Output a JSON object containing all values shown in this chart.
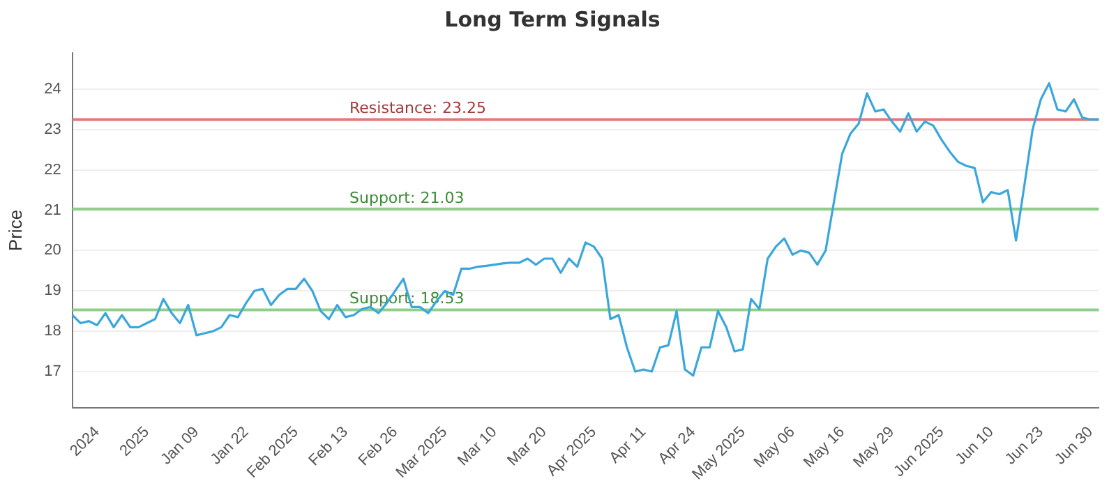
{
  "chart_data": {
    "type": "line",
    "title": "Long Term Signals",
    "ylabel": "Price",
    "categories": [
      null,
      null,
      null,
      "2024",
      null,
      null,
      null,
      null,
      null,
      "2025",
      null,
      null,
      null,
      null,
      null,
      "Jan 09",
      null,
      null,
      null,
      null,
      null,
      "Jan 22",
      null,
      null,
      null,
      null,
      null,
      "Feb 2025",
      null,
      null,
      null,
      null,
      null,
      "Feb 13",
      null,
      null,
      null,
      null,
      null,
      "Feb 26",
      null,
      null,
      null,
      null,
      null,
      "Mar 2025",
      null,
      null,
      null,
      null,
      null,
      "Mar 10",
      null,
      null,
      null,
      null,
      null,
      "Mar 20",
      null,
      null,
      null,
      null,
      null,
      "Apr 2025",
      null,
      null,
      null,
      null,
      null,
      "Apr 11",
      null,
      null,
      null,
      null,
      null,
      "Apr 24",
      null,
      null,
      null,
      null,
      null,
      "May 2025",
      null,
      null,
      null,
      null,
      null,
      "May 06",
      null,
      null,
      null,
      null,
      null,
      "May 16",
      null,
      null,
      null,
      null,
      null,
      "May 29",
      null,
      null,
      null,
      null,
      null,
      "Jun 2025",
      null,
      null,
      null,
      null,
      null,
      "Jun 10",
      null,
      null,
      null,
      null,
      null,
      "Jun 23",
      null,
      null,
      null,
      null,
      null,
      "Jun 30",
      null
    ],
    "series": [
      {
        "color": "#3aa7dc",
        "values": [
          18.4,
          18.2,
          18.25,
          18.15,
          18.45,
          18.1,
          18.4,
          18.1,
          18.1,
          18.2,
          18.3,
          18.8,
          18.45,
          18.2,
          18.65,
          17.9,
          17.95,
          18.0,
          18.1,
          18.4,
          18.35,
          18.7,
          19.0,
          19.05,
          18.65,
          18.9,
          19.05,
          19.05,
          19.3,
          19.0,
          18.5,
          18.3,
          18.65,
          18.35,
          18.4,
          18.55,
          18.6,
          18.45,
          18.7,
          19.0,
          19.3,
          18.6,
          18.6,
          18.45,
          18.75,
          19.0,
          18.9,
          19.55,
          19.55,
          19.6,
          19.62,
          19.65,
          19.68,
          19.7,
          19.7,
          19.8,
          19.65,
          19.8,
          19.8,
          19.45,
          19.8,
          19.6,
          20.2,
          20.1,
          19.8,
          18.3,
          18.4,
          17.6,
          17.0,
          17.05,
          17.0,
          17.6,
          17.65,
          18.5,
          17.05,
          16.9,
          17.6,
          17.6,
          18.5,
          18.1,
          17.5,
          17.55,
          18.8,
          18.55,
          19.8,
          20.1,
          20.3,
          19.9,
          20.0,
          19.95,
          19.65,
          20.0,
          21.2,
          22.4,
          22.9,
          23.15,
          23.9,
          23.45,
          23.5,
          23.2,
          22.95,
          23.4,
          22.95,
          23.2,
          23.1,
          22.75,
          22.45,
          22.2,
          22.1,
          22.05,
          21.2,
          21.45,
          21.4,
          21.5,
          20.25,
          21.6,
          23.0,
          23.75,
          24.15,
          23.5,
          23.45,
          23.75,
          23.3,
          23.25,
          23.25
        ]
      }
    ],
    "ylim": [
      16.1,
      24.9
    ],
    "yticks": [
      17,
      18,
      19,
      20,
      21,
      22,
      23,
      24
    ],
    "grid": "y",
    "legend": false,
    "marker": "none",
    "line_style": "solid",
    "ref_lines": [
      {
        "axis": "y",
        "value": 23.25,
        "label": "Resistance: 23.25",
        "color": "#e07a7a"
      },
      {
        "axis": "y",
        "value": 21.03,
        "label": "Support: 21.03",
        "color": "#8fcf8a"
      },
      {
        "axis": "y",
        "value": 18.53,
        "label": "Support: 18.53",
        "color": "#8fcf8a"
      }
    ]
  }
}
